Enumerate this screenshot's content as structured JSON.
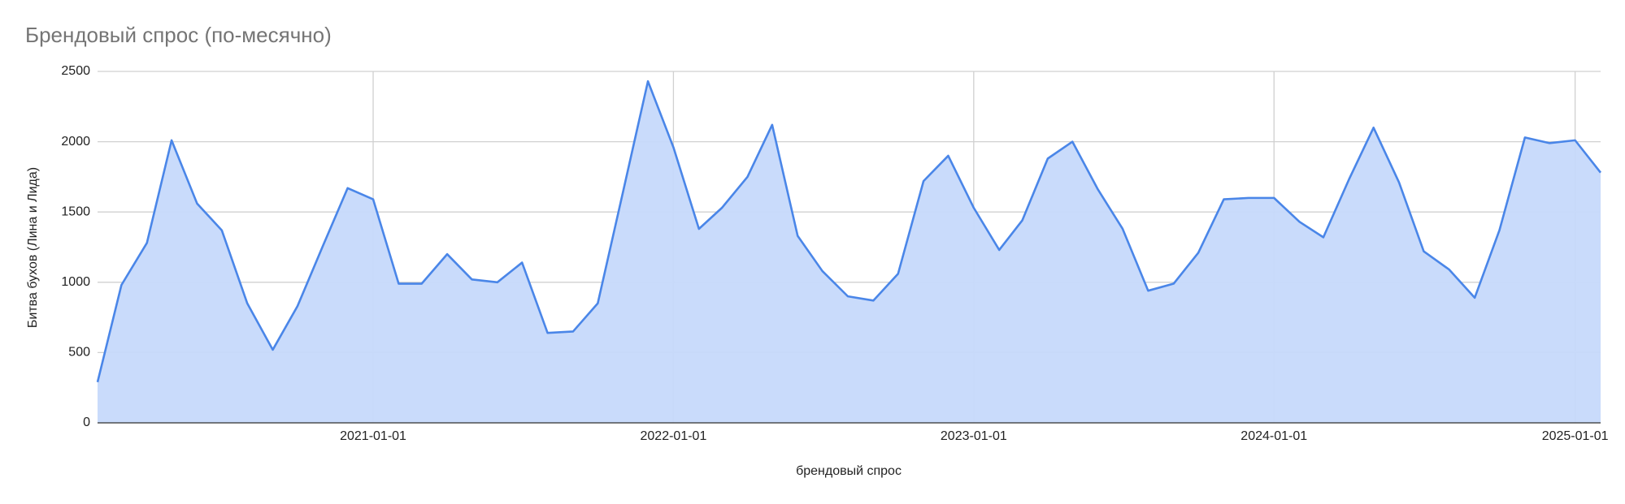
{
  "chart_data": {
    "type": "area",
    "title": "Брендовый спрос (по-месячно)",
    "x_label": "брендовый спрос",
    "y_label": "Битва бухов (Лина и Лида)",
    "x": [
      "2020-02-01",
      "2020-03-01",
      "2020-04-01",
      "2020-05-01",
      "2020-06-01",
      "2020-07-01",
      "2020-08-01",
      "2020-09-01",
      "2020-10-01",
      "2020-11-01",
      "2020-12-01",
      "2021-01-01",
      "2021-02-01",
      "2021-03-01",
      "2021-04-01",
      "2021-05-01",
      "2021-06-01",
      "2021-07-01",
      "2021-08-01",
      "2021-09-01",
      "2021-10-01",
      "2021-11-01",
      "2021-12-01",
      "2022-01-01",
      "2022-02-01",
      "2022-03-01",
      "2022-04-01",
      "2022-05-01",
      "2022-06-01",
      "2022-07-01",
      "2022-08-01",
      "2022-09-01",
      "2022-10-01",
      "2022-11-01",
      "2022-12-01",
      "2023-01-01",
      "2023-02-01",
      "2023-03-01",
      "2023-04-01",
      "2023-05-01",
      "2023-06-01",
      "2023-07-01",
      "2023-08-01",
      "2023-09-01",
      "2023-10-01",
      "2023-11-01",
      "2023-12-01",
      "2024-01-01",
      "2024-02-01",
      "2024-03-01",
      "2024-04-01",
      "2024-05-01",
      "2024-06-01",
      "2024-07-01",
      "2024-08-01",
      "2024-09-01",
      "2024-10-01",
      "2024-11-01",
      "2024-12-01",
      "2025-01-01",
      "2025-02-01"
    ],
    "series": [
      {
        "name": "брендовый спрос",
        "color": "#4a86e8",
        "fill": "#c6d9fb",
        "values": [
          290,
          980,
          1280,
          2010,
          1560,
          1370,
          850,
          520,
          830,
          1260,
          1670,
          1590,
          990,
          990,
          1200,
          1020,
          1000,
          1140,
          640,
          650,
          850,
          1650,
          2430,
          1960,
          1380,
          1530,
          1750,
          2120,
          1330,
          1080,
          900,
          870,
          1060,
          1720,
          1900,
          1530,
          1230,
          1440,
          1880,
          2000,
          1660,
          1380,
          940,
          990,
          1210,
          1590,
          1600,
          1600,
          1430,
          1320,
          1730,
          2100,
          1710,
          1220,
          1090,
          890,
          1370,
          2030,
          1990,
          2010,
          1780
        ]
      }
    ],
    "xlim": [
      "2020-02-01",
      "2025-02-01"
    ],
    "xticks": [
      "2021-01-01",
      "2022-01-01",
      "2023-01-01",
      "2024-01-01",
      "2025-01-01"
    ],
    "ylim": [
      0,
      2500
    ],
    "yticks": [
      0,
      500,
      1000,
      1500,
      2000,
      2500
    ],
    "grid": true
  }
}
